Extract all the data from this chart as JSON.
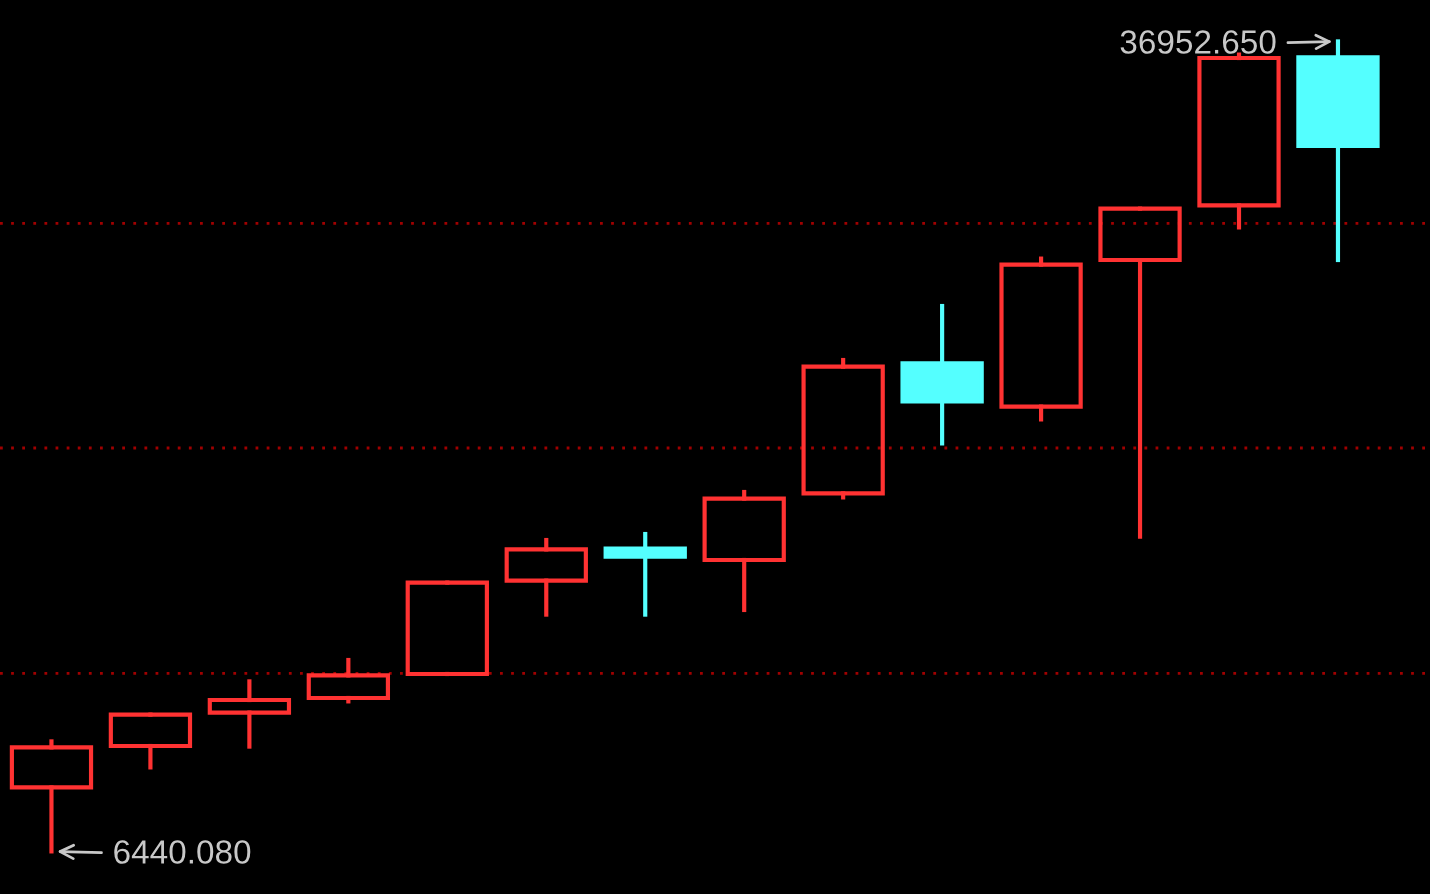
{
  "chart_data": {
    "type": "candlestick",
    "categories": [
      null,
      null,
      null,
      null,
      null,
      null,
      null,
      null,
      null,
      null,
      null,
      null,
      null,
      null
    ],
    "ohlc": [
      [
        8851,
        10584,
        6440.08,
        10358
      ],
      [
        10410,
        11593,
        9604,
        11593
      ],
      [
        11669,
        12844,
        10388,
        12143
      ],
      [
        12219,
        13650,
        12091,
        13070
      ],
      [
        13123,
        16566,
        13123,
        16566
      ],
      [
        16641,
        18170,
        15360,
        17816
      ],
      [
        17846,
        18396,
        15360,
        17545
      ],
      [
        17417,
        19979,
        15534,
        19730
      ],
      [
        19926,
        24951,
        19775,
        24702
      ],
      [
        24823,
        26985,
        21809,
        23392
      ],
      [
        23196,
        28771,
        22713,
        28545
      ],
      [
        28718,
        30654,
        18299,
        30654
      ],
      [
        30775,
        36456,
        29946,
        36328
      ],
      [
        36350,
        36952.65,
        28718,
        33013
      ]
    ],
    "colors": [
      "#ff3232",
      "#ff3232",
      "#ff3232",
      "#ff3232",
      "#ff3232",
      "#ff3232",
      "#54ffff",
      "#ff3232",
      "#ff3232",
      "#54ffff",
      "#ff3232",
      "#ff3232",
      "#ff3232",
      "#54ffff"
    ],
    "ylim": [
      4835,
      38513
    ],
    "yticks": [
      {
        "value": 13145,
        "label": null
      },
      {
        "value": 21636,
        "label": null
      },
      {
        "value": 30097,
        "label": null
      }
    ],
    "grid": "y",
    "annotations": [
      "36952.650",
      "6440.080"
    ]
  }
}
